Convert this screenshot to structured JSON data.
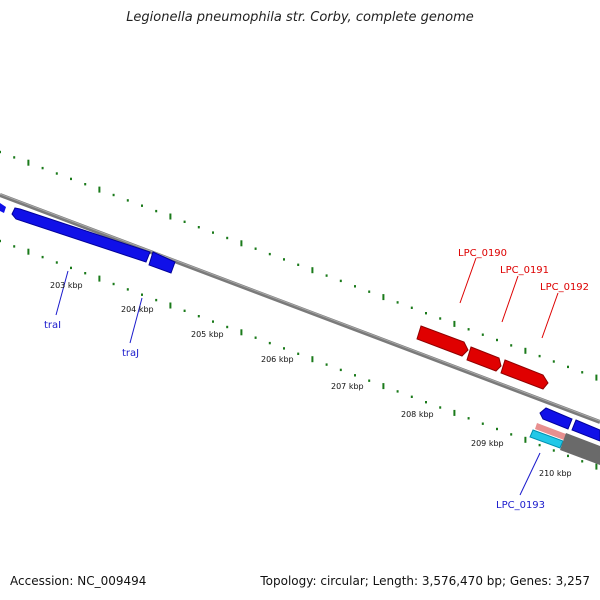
{
  "title": "Legionella pneumophila str. Corby, complete genome",
  "accession": "Accession: NC_009494",
  "stats": "Topology: circular; Length: 3,576,470 bp; Genes: 3,257",
  "colors": {
    "forward_gene": "#e00000",
    "reverse_gene": "#1010e8",
    "gene_label_forward": "#dd0000",
    "gene_label_reverse": "#1a1acc",
    "tick": "#1a7a1a",
    "backbone": "#7a7a7a",
    "pink_feature": "#e89090",
    "cyan_feature": "#22c8e8"
  },
  "scale_ticks": [
    "203 kbp",
    "204 kbp",
    "205 kbp",
    "206 kbp",
    "207 kbp",
    "208 kbp",
    "209 kbp",
    "210 kbp"
  ],
  "gene_labels": {
    "traI_a": "traI",
    "traJ": "traJ",
    "lpc0190": "LPC_0190",
    "lpc0191": "LPC_0191",
    "lpc0192": "LPC_0192",
    "lpc0193": "LPC_0193"
  }
}
